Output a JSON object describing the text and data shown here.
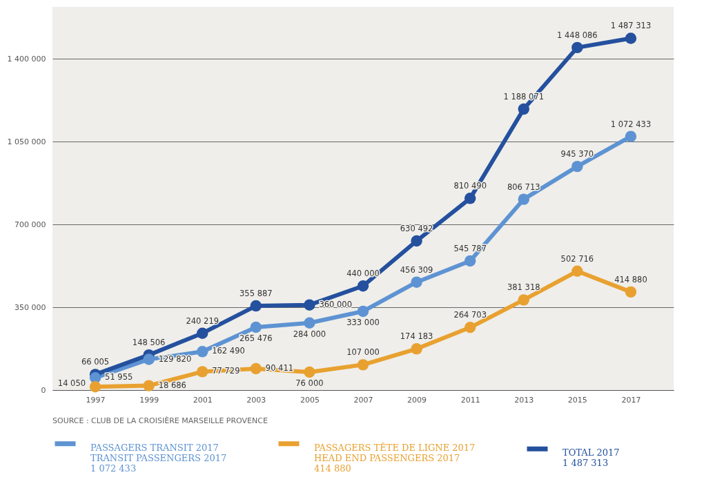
{
  "chart_data": {
    "type": "line",
    "categories": [
      "1997",
      "1999",
      "2001",
      "2003",
      "2005",
      "2007",
      "2009",
      "2011",
      "2013",
      "2015",
      "2017"
    ],
    "series": [
      {
        "name": "PASSAGERS TRANSIT 2017\nTRANSIT PASSENGERS 2017\n1 072 433",
        "color": "#5e93d3",
        "values": [
          51955,
          129820,
          162490,
          265476,
          284000,
          333000,
          456309,
          545787,
          806713,
          945370,
          1072433
        ]
      },
      {
        "name": "PASSAGERS TÊTE DE LIGNE 2017\nHEAD END PASSENGERS 2017\n414 880",
        "color": "#e8a130",
        "values": [
          14050,
          18686,
          77729,
          90411,
          76000,
          107000,
          174183,
          264703,
          381318,
          502716,
          414880
        ]
      },
      {
        "name": "TOTAL 2017\n1 487 313",
        "color": "#24509e",
        "values": [
          66005,
          148506,
          240219,
          355887,
          360000,
          440000,
          630492,
          810490,
          1188071,
          1448086,
          1487313
        ]
      }
    ],
    "ylim": [
      0,
      1620000
    ],
    "yticks": [
      0,
      {
        "value": 350000,
        "label": "350 000"
      },
      {
        "value": 700000,
        "label": "700 000"
      },
      {
        "value": 1050000,
        "label": "1 050 000"
      },
      {
        "value": 1400000,
        "label": "1 400 000"
      }
    ],
    "grid": "y",
    "marker": "circle",
    "data_labels": true,
    "legend": "bottom",
    "annotations": [
      "SOURCE : CLUB DE LA CROISIÈRE MARSEILLE PROVENCE"
    ]
  }
}
